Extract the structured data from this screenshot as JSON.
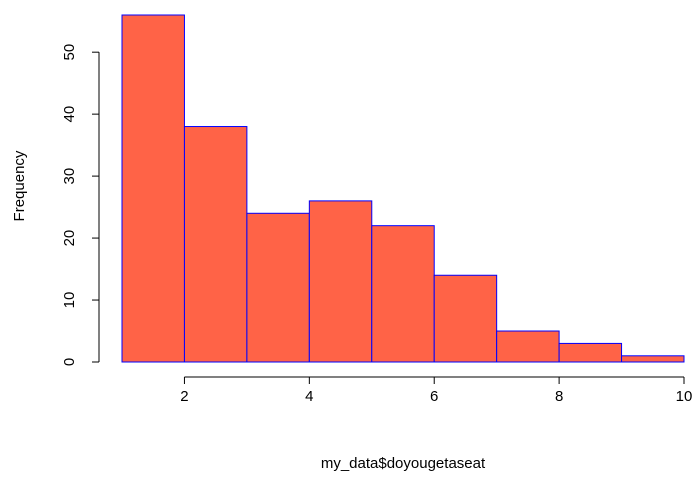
{
  "chart_data": {
    "type": "bar",
    "title": "",
    "xlabel": "my_data$doyougetaseat",
    "ylabel": "Frequency",
    "bins": [
      {
        "start": 1,
        "end": 2,
        "value": 56
      },
      {
        "start": 2,
        "end": 3,
        "value": 38
      },
      {
        "start": 3,
        "end": 4,
        "value": 24
      },
      {
        "start": 4,
        "end": 5,
        "value": 26
      },
      {
        "start": 5,
        "end": 6,
        "value": 22
      },
      {
        "start": 6,
        "end": 7,
        "value": 14
      },
      {
        "start": 7,
        "end": 8,
        "value": 5
      },
      {
        "start": 8,
        "end": 9,
        "value": 3
      },
      {
        "start": 9,
        "end": 10,
        "value": 1
      }
    ],
    "xlim": [
      1,
      10
    ],
    "ylim": [
      0,
      56
    ],
    "xticks": [
      2,
      4,
      6,
      8,
      10
    ],
    "yticks": [
      0,
      10,
      20,
      30,
      40,
      50
    ],
    "fill_color": "#FF6347",
    "border_color": "#0000FF",
    "grid": false,
    "legend": "none"
  }
}
